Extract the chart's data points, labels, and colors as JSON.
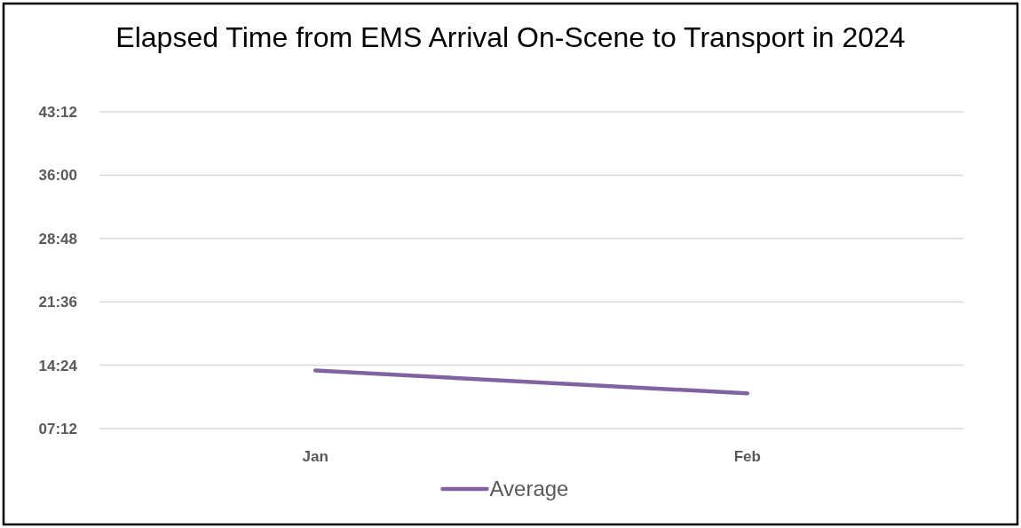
{
  "chart_data": {
    "type": "line",
    "title": "Elapsed Time from EMS Arrival On-Scene to Transport in 2024",
    "categories": [
      "Jan",
      "Feb"
    ],
    "series": [
      {
        "name": "Average",
        "color": "#8064a2",
        "values": [
          13.8,
          11.2
        ]
      }
    ],
    "ylim": [
      7.2,
      43.2
    ],
    "yticks": [
      {
        "value": 7.2,
        "label": "07:12"
      },
      {
        "value": 14.4,
        "label": "14:24"
      },
      {
        "value": 21.6,
        "label": "21:36"
      },
      {
        "value": 28.8,
        "label": "28:48"
      },
      {
        "value": 36,
        "label": "36:00"
      },
      {
        "value": 43.2,
        "label": "43:12"
      }
    ],
    "grid": "y",
    "legend": "bottom",
    "marker": "none",
    "line_style": "solid"
  }
}
